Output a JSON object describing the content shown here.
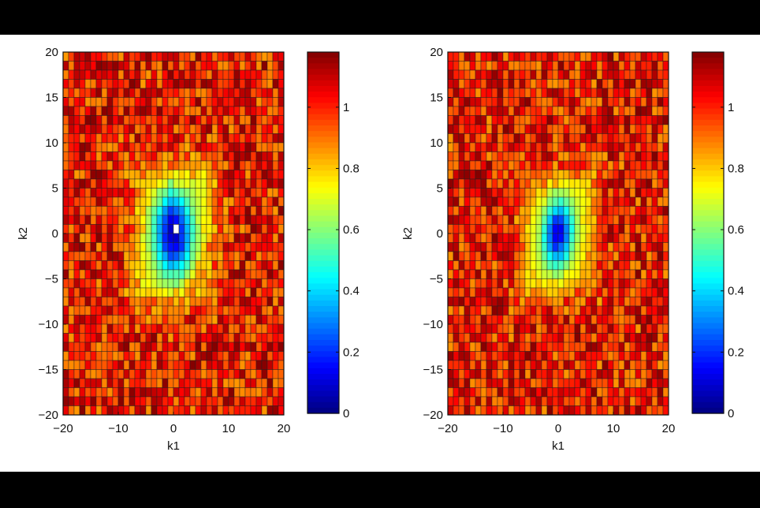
{
  "chart_data": [
    {
      "type": "heatmap",
      "title": "",
      "xlabel": "k1",
      "ylabel": "k2",
      "xlim": [
        -20,
        20
      ],
      "ylim": [
        -20,
        20
      ],
      "x_ticks": [
        "-20",
        "-10",
        "0",
        "10",
        "20"
      ],
      "y_ticks": [
        "20",
        "15",
        "10",
        "5",
        "0",
        "-5",
        "-10",
        "-15",
        "-20"
      ],
      "colorbar": {
        "range": [
          0,
          1.18
        ],
        "ticks": [
          "1",
          "0.8",
          "0.6",
          "0.4",
          "0.2",
          "0"
        ],
        "tick_values": [
          1,
          0.8,
          0.6,
          0.4,
          0.2,
          0
        ],
        "colormap": "jet"
      },
      "grid_resolution": 1,
      "pattern": {
        "background_value": 1.0,
        "center": [
          0,
          0
        ],
        "min_value": 0.05,
        "center_spot_value": 1.1,
        "dip_width": 2.3,
        "yellow_band_value": 0.72,
        "band_extent": 8
      }
    },
    {
      "type": "heatmap",
      "title": "",
      "xlabel": "k1",
      "ylabel": "k2",
      "xlim": [
        -20,
        20
      ],
      "ylim": [
        -20,
        20
      ],
      "x_ticks": [
        "-20",
        "-10",
        "0",
        "10",
        "20"
      ],
      "y_ticks": [
        "20",
        "15",
        "10",
        "5",
        "0",
        "-5",
        "-10",
        "-15",
        "-20"
      ],
      "colorbar": {
        "range": [
          0,
          1.18
        ],
        "ticks": [
          "1",
          "0.8",
          "0.6",
          "0.4",
          "0.2",
          "0"
        ],
        "tick_values": [
          1,
          0.8,
          0.6,
          0.4,
          0.2,
          0
        ],
        "colormap": "jet"
      },
      "grid_resolution": 1,
      "pattern": {
        "background_value": 1.0,
        "center": [
          0,
          0
        ],
        "min_value": 0.12,
        "center_spot_value": null,
        "dip_width": 1.9,
        "yellow_band_value": 0.75,
        "band_extent": 7
      }
    }
  ]
}
